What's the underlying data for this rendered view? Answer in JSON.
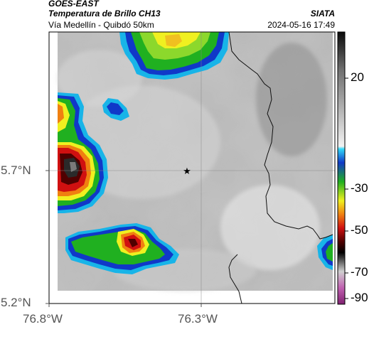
{
  "header": {
    "satellite": "GOES-EAST",
    "product": "Temperatura de Brillo CH13",
    "provider": "SIATA",
    "region": "Vía Medellín - Quibdó 50km",
    "datetime": "2024-05-16 17:49"
  },
  "map": {
    "lat_ticks": [
      "5.7°N",
      "5.2°N"
    ],
    "lon_ticks": [
      "76.8°W",
      "76.3°W"
    ],
    "marker": "star-icon",
    "palette": {
      "land_gray_light": "#e6e6e6",
      "land_gray_dark": "#8a8a8a",
      "cyan": "#18b4e8",
      "blue": "#1038c8",
      "green": "#20b020",
      "yellow": "#f0f020",
      "orange": "#f08010",
      "red": "#d01010",
      "dark_red": "#500000",
      "black": "#101010",
      "magenta": "#b04090"
    }
  },
  "colorbar": {
    "ticks": [
      "20",
      "-30",
      "-50",
      "-70",
      "-90"
    ]
  }
}
